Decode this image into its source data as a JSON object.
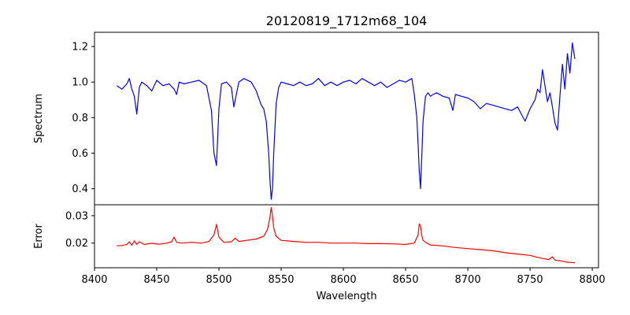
{
  "chart_data": [
    {
      "type": "line",
      "title": "20120819_1712m68_104",
      "xlabel": "",
      "ylabel": "Spectrum",
      "xlim": [
        8400,
        8805
      ],
      "ylim": [
        0.31,
        1.28
      ],
      "yticks": [
        0.4,
        0.6,
        0.8,
        1.0,
        1.2
      ],
      "ytick_labels": [
        "0.4",
        "0.6",
        "0.8",
        "1.0",
        "1.2"
      ],
      "series": [
        {
          "name": "spectrum",
          "color": "#0000ff",
          "x": [
            8418,
            8422,
            8426,
            8428,
            8430,
            8432,
            8434,
            8436,
            8438,
            8442,
            8446,
            8450,
            8455,
            8460,
            8464,
            8466,
            8468,
            8472,
            8478,
            8484,
            8490,
            8494,
            8496,
            8498,
            8500,
            8502,
            8506,
            8510,
            8512,
            8514,
            8516,
            8520,
            8526,
            8530,
            8534,
            8536,
            8538,
            8540,
            8541,
            8542,
            8543,
            8544,
            8546,
            8548,
            8550,
            8555,
            8560,
            8565,
            8570,
            8575,
            8580,
            8585,
            8590,
            8595,
            8600,
            8605,
            8610,
            8615,
            8620,
            8625,
            8630,
            8635,
            8640,
            8645,
            8650,
            8655,
            8657,
            8659,
            8660,
            8661,
            8662,
            8663,
            8664,
            8666,
            8668,
            8670,
            8672,
            8675,
            8680,
            8685,
            8688,
            8690,
            8695,
            8700,
            8705,
            8710,
            8715,
            8720,
            8725,
            8730,
            8735,
            8740,
            8743,
            8746,
            8750,
            8754,
            8756,
            8758,
            8760,
            8762,
            8764,
            8766,
            8768,
            8770,
            8772,
            8774,
            8776,
            8778,
            8780,
            8782,
            8784,
            8786
          ],
          "values": [
            0.98,
            0.96,
            0.99,
            1.02,
            0.96,
            0.92,
            0.82,
            0.97,
            1.0,
            0.98,
            0.95,
            1.01,
            0.98,
            0.99,
            0.96,
            0.93,
            1.0,
            0.99,
            1.0,
            1.01,
            0.98,
            0.84,
            0.6,
            0.53,
            0.85,
            0.99,
            1.0,
            0.97,
            0.86,
            0.93,
            1.0,
            1.02,
            1.0,
            0.95,
            0.87,
            0.85,
            0.78,
            0.6,
            0.45,
            0.34,
            0.4,
            0.6,
            0.88,
            0.97,
            1.0,
            0.99,
            0.98,
            1.0,
            0.98,
            0.99,
            1.02,
            0.98,
            1.0,
            0.98,
            1.0,
            1.01,
            0.99,
            1.02,
            1.0,
            0.98,
            1.0,
            0.97,
            0.99,
            1.01,
            1.0,
            1.02,
            0.93,
            0.8,
            0.65,
            0.5,
            0.4,
            0.58,
            0.78,
            0.92,
            0.94,
            0.92,
            0.93,
            0.94,
            0.92,
            0.91,
            0.84,
            0.93,
            0.92,
            0.91,
            0.89,
            0.85,
            0.88,
            0.87,
            0.86,
            0.85,
            0.84,
            0.86,
            0.82,
            0.78,
            0.85,
            0.9,
            0.96,
            0.94,
            1.07,
            0.98,
            0.89,
            0.94,
            0.86,
            0.77,
            0.73,
            0.92,
            1.1,
            0.96,
            1.16,
            1.05,
            1.22,
            1.13
          ]
        }
      ]
    },
    {
      "type": "line",
      "title": "",
      "xlabel": "Wavelength",
      "ylabel": "Error",
      "xlim": [
        8400,
        8805
      ],
      "ylim": [
        0.011,
        0.034
      ],
      "yticks": [
        0.02,
        0.03
      ],
      "ytick_labels": [
        "0.02",
        "0.03"
      ],
      "xticks": [
        8400,
        8450,
        8500,
        8550,
        8600,
        8650,
        8700,
        8750,
        8800
      ],
      "xtick_labels": [
        "8400",
        "8450",
        "8500",
        "8550",
        "8600",
        "8650",
        "8700",
        "8750",
        "8800"
      ],
      "series": [
        {
          "name": "error",
          "color": "#ff0000",
          "x": [
            8418,
            8422,
            8426,
            8428,
            8430,
            8432,
            8434,
            8436,
            8440,
            8446,
            8452,
            8458,
            8462,
            8464,
            8466,
            8470,
            8478,
            8486,
            8492,
            8496,
            8498,
            8500,
            8504,
            8510,
            8513,
            8516,
            8522,
            8530,
            8536,
            8539,
            8541,
            8542,
            8543,
            8544,
            8546,
            8550,
            8560,
            8570,
            8580,
            8590,
            8600,
            8610,
            8620,
            8630,
            8640,
            8650,
            8657,
            8660,
            8661,
            8662,
            8663,
            8664,
            8667,
            8670,
            8680,
            8690,
            8700,
            8710,
            8720,
            8730,
            8740,
            8750,
            8755,
            8760,
            8765,
            8768,
            8770,
            8775,
            8780,
            8786
          ],
          "values": [
            0.019,
            0.0191,
            0.0195,
            0.0205,
            0.0192,
            0.0208,
            0.0195,
            0.0205,
            0.0195,
            0.0199,
            0.0196,
            0.02,
            0.0205,
            0.0222,
            0.0203,
            0.02,
            0.0203,
            0.02,
            0.0206,
            0.023,
            0.0268,
            0.0222,
            0.0203,
            0.0205,
            0.0218,
            0.0206,
            0.021,
            0.0215,
            0.0225,
            0.025,
            0.0295,
            0.033,
            0.03,
            0.0255,
            0.0225,
            0.021,
            0.0206,
            0.0203,
            0.0203,
            0.02,
            0.02,
            0.02,
            0.0198,
            0.0198,
            0.0197,
            0.0195,
            0.02,
            0.023,
            0.027,
            0.0262,
            0.0228,
            0.021,
            0.02,
            0.0193,
            0.019,
            0.0184,
            0.018,
            0.0176,
            0.0172,
            0.0165,
            0.016,
            0.0155,
            0.0149,
            0.0144,
            0.014,
            0.015,
            0.0138,
            0.0135,
            0.013,
            0.0128
          ]
        }
      ]
    }
  ]
}
